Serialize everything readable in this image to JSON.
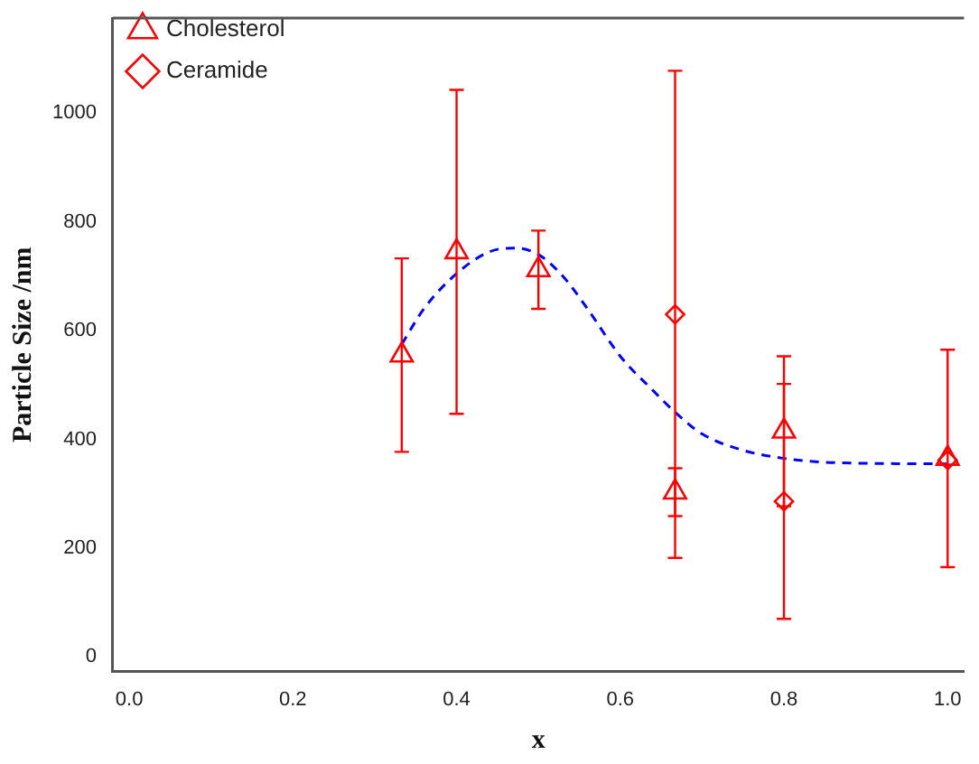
{
  "chart_data": {
    "type": "scatter",
    "xlabel": "x",
    "ylabel": "Particle Size /nm",
    "xlim": [
      -0.02,
      1.02
    ],
    "xticks": [
      {
        "value": 0,
        "label": "0.0"
      },
      0.2,
      0.4,
      0.6,
      0.8,
      {
        "value": 1,
        "label": "1.0"
      }
    ],
    "ylim": [
      -27,
      1175
    ],
    "yticks": [
      0,
      200,
      400,
      600,
      800,
      1000
    ],
    "grid": false,
    "legend": "top left",
    "series": [
      {
        "name": "Cholesterol",
        "color": "#ff0000",
        "marker": "triangle",
        "x": [
          0.333,
          0.4,
          0.5,
          0.667,
          0.8,
          1.0
        ],
        "values": [
          555,
          745,
          712,
          303,
          415,
          365
        ],
        "errors": [
          178,
          298,
          72,
          44,
          138,
          200
        ]
      },
      {
        "name": "Ceramide",
        "color": "#ff0000",
        "marker": "diamond",
        "x": [
          0.667,
          0.8,
          1.0
        ],
        "values": [
          630,
          286,
          362
        ],
        "errors": [
          448,
          216,
          null
        ]
      },
      {
        "type": "line",
        "color": "#0000ff",
        "line_style": "dashed",
        "marker": "none",
        "x": [
          0.333,
          0.36,
          0.4,
          0.44,
          0.47,
          0.5,
          0.53,
          0.56,
          0.6,
          0.64,
          0.667,
          0.7,
          0.75,
          0.8,
          0.85,
          0.9,
          1.0
        ],
        "values": [
          575,
          640,
          705,
          745,
          752,
          740,
          700,
          640,
          553,
          490,
          450,
          410,
          380,
          365,
          358,
          356,
          355
        ]
      }
    ]
  }
}
